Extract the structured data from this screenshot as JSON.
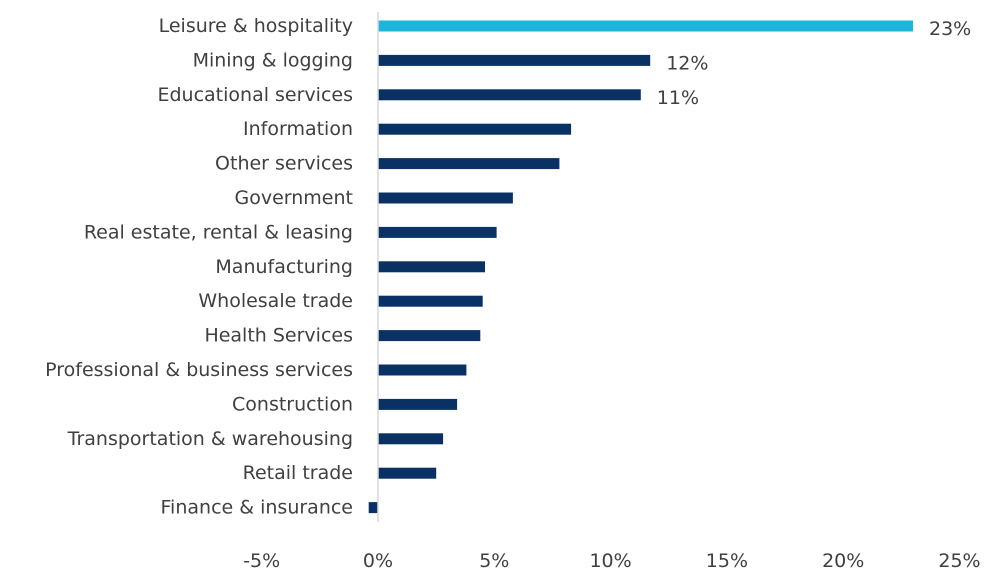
{
  "chart_data": {
    "type": "bar",
    "orientation": "horizontal",
    "categories": [
      "Leisure & hospitality",
      "Mining & logging",
      "Educational services",
      "Information",
      "Other services",
      "Government",
      "Real estate, rental & leasing",
      "Manufacturing",
      "Wholesale trade",
      "Health Services",
      "Professional & business services",
      "Construction",
      "Transportation & warehousing",
      "Retail trade",
      "Finance & insurance"
    ],
    "values": [
      23,
      11.7,
      11.3,
      8.3,
      7.8,
      5.8,
      5.1,
      4.6,
      4.5,
      4.4,
      3.8,
      3.4,
      2.8,
      2.5,
      -0.4
    ],
    "data_labels": [
      "23%",
      "12%",
      "11%",
      "",
      "",
      "",
      "",
      "",
      "",
      "",
      "",
      "",
      "",
      "",
      ""
    ],
    "highlight_index": 0,
    "colors": {
      "bar": "#0a3163",
      "highlight": "#1fb4d9",
      "axis": "#d9d9d9",
      "text": "#404040"
    },
    "xlim": [
      -5,
      25
    ],
    "xticks": [
      -5,
      0,
      5,
      10,
      15,
      20,
      25
    ],
    "xtick_labels": [
      "-5%",
      "0%",
      "5%",
      "10%",
      "15%",
      "20%",
      "25%"
    ],
    "grid": false,
    "legend": "none"
  }
}
